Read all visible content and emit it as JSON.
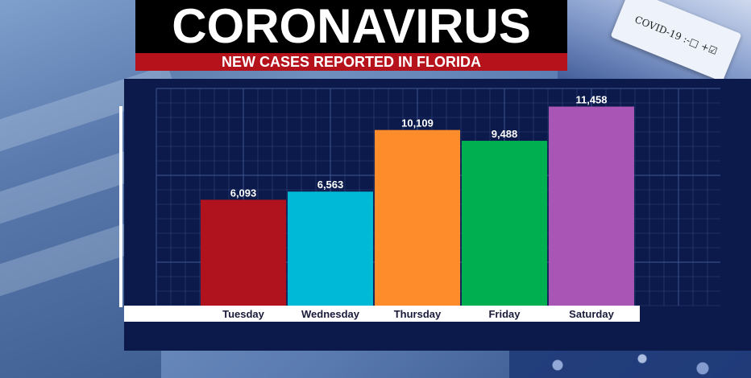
{
  "header": {
    "title": "CORONAVIRUS",
    "subtitle": "NEW CASES REPORTED IN FLORIDA"
  },
  "background": {
    "tube_label": "COVID-19 :-□ +☑"
  },
  "colors": {
    "title_bg": "#000000",
    "subtitle_bg": "#b5121b",
    "panel_bg": "#0b1a4a",
    "grid": "#3a4f8a",
    "axis_band": "#ffffff"
  },
  "chart_data": {
    "type": "bar",
    "categories": [
      "Tuesday",
      "Wednesday",
      "Thursday",
      "Friday",
      "Saturday"
    ],
    "values": [
      6093,
      6563,
      10109,
      9488,
      11458
    ],
    "data_labels": [
      "6,093",
      "6,563",
      "10,109",
      "9,488",
      "11,458"
    ],
    "bar_colors": [
      "#b0121e",
      "#00b9d6",
      "#ff8c2a",
      "#00b050",
      "#a855b5"
    ],
    "ylim": [
      0,
      12500
    ],
    "grid": true
  }
}
